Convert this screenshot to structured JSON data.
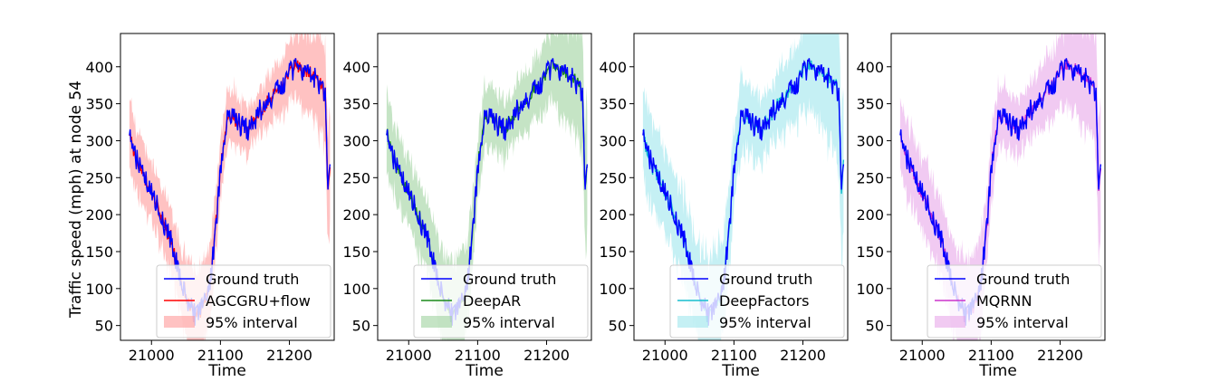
{
  "figure": {
    "ylabel": "Traffic speed (mph) at node 54",
    "xlabel": "Time"
  },
  "chart_data": [
    {
      "type": "line",
      "model": "AGCGRU+flow",
      "color": "#ff0000",
      "fill_color": "#ff9a9a",
      "band_scale": 1.0,
      "legend": [
        "Ground truth",
        "AGCGRU+flow",
        "95% interval"
      ],
      "xlabel": "Time",
      "ylabel": "Traffic speed (mph) at node 54",
      "xlim": [
        20955,
        21265
      ],
      "ylim": [
        30,
        445
      ],
      "xticks": [
        21000,
        21100,
        21200
      ],
      "yticks": [
        50,
        100,
        150,
        200,
        250,
        300,
        350,
        400
      ]
    },
    {
      "type": "line",
      "model": "DeepAR",
      "color": "#1a8a1a",
      "fill_color": "#9fd29f",
      "band_scale": 1.15,
      "legend": [
        "Ground truth",
        "DeepAR",
        "95% interval"
      ],
      "xlabel": "Time",
      "ylabel": "",
      "xlim": [
        20955,
        21265
      ],
      "ylim": [
        30,
        445
      ],
      "xticks": [
        21000,
        21100,
        21200
      ],
      "yticks": [
        50,
        100,
        150,
        200,
        250,
        300,
        350,
        400
      ]
    },
    {
      "type": "line",
      "model": "DeepFactors",
      "color": "#17becf",
      "fill_color": "#9fe6ec",
      "band_scale": 1.35,
      "legend": [
        "Ground truth",
        "DeepFactors",
        "95% interval"
      ],
      "xlabel": "Time",
      "ylabel": "",
      "xlim": [
        20955,
        21265
      ],
      "ylim": [
        30,
        445
      ],
      "xticks": [
        21000,
        21100,
        21200
      ],
      "yticks": [
        50,
        100,
        150,
        200,
        250,
        300,
        350,
        400
      ]
    },
    {
      "type": "line",
      "model": "MQRNN",
      "color": "#cc33cc",
      "fill_color": "#e7a6ea",
      "band_scale": 1.2,
      "legend": [
        "Ground truth",
        "MQRNN",
        "95% interval"
      ],
      "xlabel": "Time",
      "ylabel": "",
      "xlim": [
        20955,
        21265
      ],
      "ylim": [
        30,
        445
      ],
      "xticks": [
        21000,
        21100,
        21200
      ],
      "yticks": [
        50,
        100,
        150,
        200,
        250,
        300,
        350,
        400
      ]
    }
  ],
  "ground_truth": {
    "color": "#0000ff",
    "key_points": [
      [
        20968,
        315
      ],
      [
        20975,
        280
      ],
      [
        20985,
        260
      ],
      [
        21000,
        230
      ],
      [
        21010,
        210
      ],
      [
        21020,
        185
      ],
      [
        21030,
        160
      ],
      [
        21040,
        120
      ],
      [
        21050,
        90
      ],
      [
        21060,
        70
      ],
      [
        21065,
        60
      ],
      [
        21075,
        75
      ],
      [
        21085,
        110
      ],
      [
        21090,
        150
      ],
      [
        21095,
        200
      ],
      [
        21100,
        260
      ],
      [
        21105,
        300
      ],
      [
        21110,
        330
      ],
      [
        21120,
        330
      ],
      [
        21130,
        320
      ],
      [
        21140,
        315
      ],
      [
        21150,
        330
      ],
      [
        21160,
        345
      ],
      [
        21170,
        355
      ],
      [
        21180,
        365
      ],
      [
        21190,
        375
      ],
      [
        21200,
        390
      ],
      [
        21210,
        400
      ],
      [
        21220,
        395
      ],
      [
        21230,
        390
      ],
      [
        21240,
        380
      ],
      [
        21248,
        375
      ],
      [
        21252,
        360
      ],
      [
        21256,
        230
      ],
      [
        21259,
        270
      ]
    ],
    "band_halfwidth": [
      [
        20968,
        45
      ],
      [
        21000,
        40
      ],
      [
        21040,
        45
      ],
      [
        21060,
        60
      ],
      [
        21080,
        55
      ],
      [
        21100,
        40
      ],
      [
        21150,
        30
      ],
      [
        21200,
        40
      ],
      [
        21230,
        55
      ],
      [
        21250,
        70
      ],
      [
        21259,
        80
      ]
    ]
  }
}
